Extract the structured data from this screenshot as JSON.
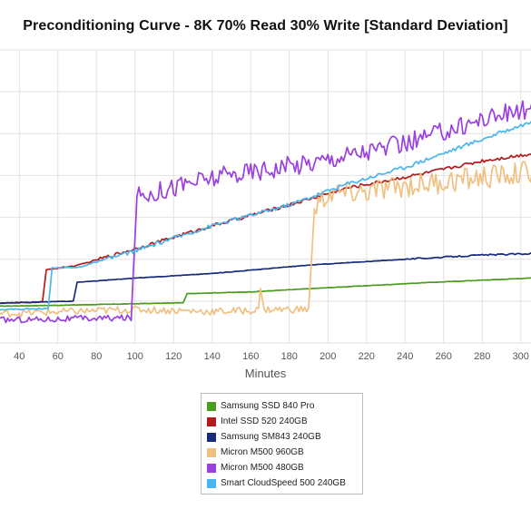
{
  "chart_data": {
    "type": "line",
    "title": "Preconditioning Curve - 8K 70% Read 30% Write [Standard Deviation]",
    "xlabel": "Minutes",
    "ylabel": "",
    "xlim": [
      30,
      310
    ],
    "xticks": [
      40,
      60,
      80,
      100,
      120,
      140,
      160,
      180,
      200,
      220,
      240,
      260,
      280,
      300
    ],
    "grid": true,
    "legend_position": "bottom-center",
    "series": [
      {
        "name": "Samsung SSD 840 Pro",
        "color": "#4a9c1c",
        "points": [
          [
            30,
            0.88
          ],
          [
            60,
            0.9
          ],
          [
            125,
            0.96
          ],
          [
            127,
            1.18
          ],
          [
            160,
            1.22
          ],
          [
            200,
            1.32
          ],
          [
            250,
            1.44
          ],
          [
            310,
            1.56
          ]
        ]
      },
      {
        "name": "Intel SSD 520 240GB",
        "color": "#b31b1b",
        "points": [
          [
            30,
            0.95
          ],
          [
            52,
            0.98
          ],
          [
            54,
            1.75
          ],
          [
            70,
            1.85
          ],
          [
            100,
            2.25
          ],
          [
            140,
            2.8
          ],
          [
            180,
            3.3
          ],
          [
            210,
            3.7
          ],
          [
            250,
            4.05
          ],
          [
            280,
            4.35
          ],
          [
            310,
            4.55
          ]
        ]
      },
      {
        "name": "Samsung SM843 240GB",
        "color": "#1a2a7a",
        "points": [
          [
            30,
            0.95
          ],
          [
            68,
            1.0
          ],
          [
            70,
            1.45
          ],
          [
            100,
            1.55
          ],
          [
            140,
            1.66
          ],
          [
            190,
            1.86
          ],
          [
            240,
            2.0
          ],
          [
            280,
            2.1
          ],
          [
            310,
            2.14
          ]
        ]
      },
      {
        "name": "Micron M500 960GB",
        "color": "#f0c080",
        "points": [
          [
            30,
            0.7
          ],
          [
            100,
            0.8
          ],
          [
            140,
            0.75
          ],
          [
            164,
            0.78
          ],
          [
            165,
            1.3
          ],
          [
            167,
            0.8
          ],
          [
            190,
            0.8
          ],
          [
            193,
            3.2
          ],
          [
            200,
            3.55
          ],
          [
            220,
            3.6
          ],
          [
            240,
            3.75
          ],
          [
            260,
            3.85
          ],
          [
            280,
            3.95
          ],
          [
            300,
            4.05
          ],
          [
            310,
            4.15
          ]
        ]
      },
      {
        "name": "Micron M500 480GB",
        "color": "#9a3fe0",
        "points": [
          [
            30,
            0.55
          ],
          [
            98,
            0.6
          ],
          [
            101,
            3.5
          ],
          [
            130,
            3.85
          ],
          [
            160,
            4.1
          ],
          [
            190,
            4.3
          ],
          [
            210,
            4.5
          ],
          [
            240,
            4.75
          ],
          [
            260,
            5.05
          ],
          [
            280,
            5.35
          ],
          [
            300,
            5.55
          ],
          [
            310,
            5.65
          ]
        ]
      },
      {
        "name": "Smart CloudSpeed 500 240GB",
        "color": "#4ab5ee",
        "points": [
          [
            30,
            0.8
          ],
          [
            55,
            0.82
          ],
          [
            57,
            1.8
          ],
          [
            70,
            1.8
          ],
          [
            100,
            2.2
          ],
          [
            140,
            2.8
          ],
          [
            180,
            3.3
          ],
          [
            210,
            3.8
          ],
          [
            240,
            4.2
          ],
          [
            270,
            4.7
          ],
          [
            300,
            5.2
          ],
          [
            310,
            5.35
          ]
        ]
      }
    ]
  }
}
